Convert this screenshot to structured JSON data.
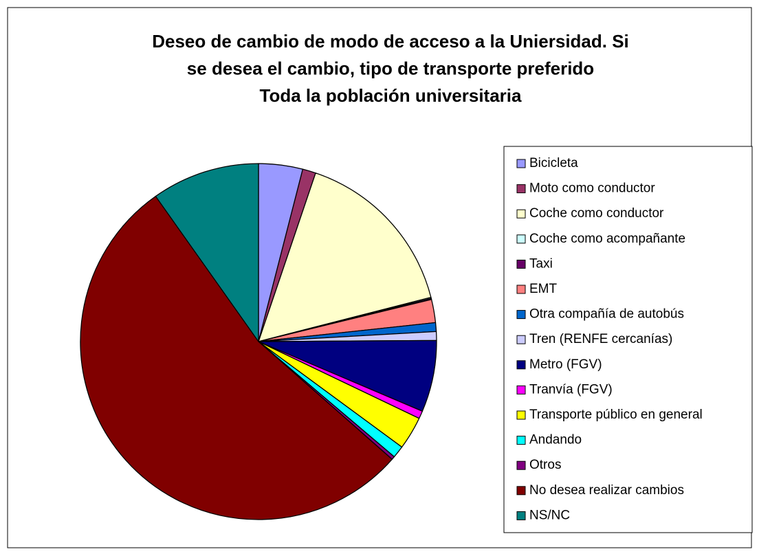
{
  "chart_data": {
    "type": "pie",
    "title": [
      "Deseo de cambio de modo de acceso a la Uniersidad. Si",
      "se desea el cambio, tipo de transporte preferido",
      "Toda la población universitaria"
    ],
    "categories": [
      "Bicicleta",
      "Moto como conductor",
      "Coche como conductor",
      "Coche como acompañante",
      "Taxi",
      "EMT",
      "Otra compañía de autobús",
      "Tren (RENFE cercanías)",
      "Metro (FGV)",
      "Tranvía (FGV)",
      "Transporte público en general",
      "Andando",
      "Otros",
      "No desea realizar cambios",
      "NS/NC"
    ],
    "values": [
      4.0,
      1.2,
      15.8,
      0.1,
      0.1,
      2.1,
      0.8,
      0.8,
      6.5,
      0.7,
      3.0,
      1.1,
      0.3,
      53.7,
      9.8
    ],
    "colors": [
      "#9999ff",
      "#993366",
      "#ffffcc",
      "#ccffff",
      "#660066",
      "#ff8080",
      "#0066cc",
      "#ccccff",
      "#000080",
      "#ff00ff",
      "#ffff00",
      "#00ffff",
      "#800080",
      "#800000",
      "#008080"
    ],
    "legend": "right"
  }
}
